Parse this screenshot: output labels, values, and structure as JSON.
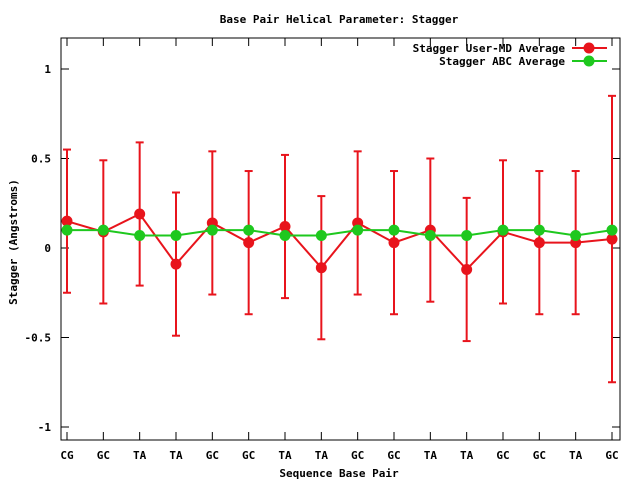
{
  "chart_data": {
    "type": "line",
    "title": "Base Pair Helical Parameter: Stagger",
    "xlabel": "Sequence Base Pair",
    "ylabel": "Stagger (Angstroms)",
    "categories": [
      "CG",
      "GC",
      "TA",
      "TA",
      "GC",
      "GC",
      "TA",
      "TA",
      "GC",
      "GC",
      "TA",
      "TA",
      "GC",
      "GC",
      "TA",
      "GC"
    ],
    "ylim": [
      -1.1,
      1.18
    ],
    "yticks": [
      -1,
      -0.5,
      0,
      0.5,
      1
    ],
    "ytick_labels": [
      "-1",
      "-0.5",
      "0",
      "0.5",
      "1"
    ],
    "grid": false,
    "legend_position": "top-right",
    "series": [
      {
        "name": "Stagger User-MD Average",
        "color": "#e8141c",
        "values": [
          0.15,
          0.09,
          0.19,
          -0.09,
          0.14,
          0.03,
          0.12,
          -0.11,
          0.14,
          0.03,
          0.1,
          -0.12,
          0.09,
          0.03,
          0.03,
          0.05
        ],
        "err_high": [
          0.55,
          0.49,
          0.59,
          0.31,
          0.54,
          0.43,
          0.52,
          0.29,
          0.54,
          0.43,
          0.5,
          0.28,
          0.49,
          0.43,
          0.43,
          0.85
        ],
        "err_low": [
          -0.25,
          -0.31,
          -0.21,
          -0.49,
          -0.26,
          -0.37,
          -0.28,
          -0.51,
          -0.26,
          -0.37,
          -0.3,
          -0.52,
          -0.31,
          -0.37,
          -0.37,
          -0.75
        ]
      },
      {
        "name": "Stagger ABC Average",
        "color": "#1ec81e",
        "values": [
          0.1,
          0.1,
          0.07,
          0.07,
          0.1,
          0.1,
          0.07,
          0.07,
          0.1,
          0.1,
          0.07,
          0.07,
          0.1,
          0.1,
          0.07,
          0.1
        ]
      }
    ]
  }
}
